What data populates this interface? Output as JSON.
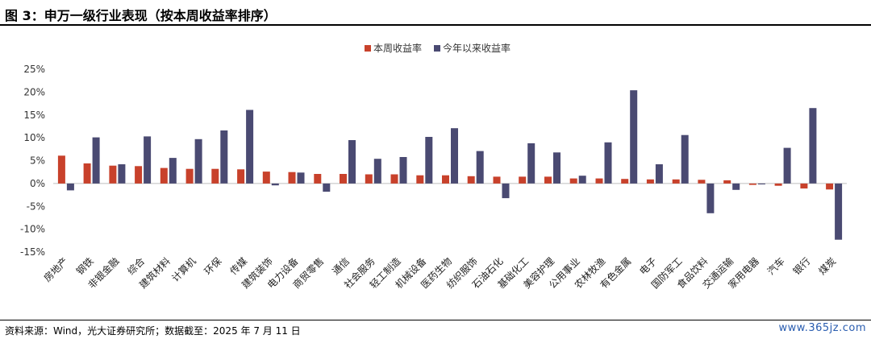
{
  "header": {
    "title": "图 3：申万一级行业表现（按本周收益率排序）"
  },
  "footer": {
    "source": "资料来源：Wind，光大证券研究所；数据截至：2025 年 7 月 11 日",
    "watermark": "www.365jz.com"
  },
  "colors": {
    "weekly": "#c8412b",
    "ytd": "#4a4a72"
  },
  "chart_data": {
    "type": "bar",
    "categories": [
      "房地产",
      "钢铁",
      "非银金融",
      "综合",
      "建筑材料",
      "计算机",
      "环保",
      "传媒",
      "建筑装饰",
      "电力设备",
      "商贸零售",
      "通信",
      "社会服务",
      "轻工制造",
      "机械设备",
      "医药生物",
      "纺织服饰",
      "石油石化",
      "基础化工",
      "美容护理",
      "公用事业",
      "农林牧渔",
      "有色金属",
      "电子",
      "国防军工",
      "食品饮料",
      "交通运输",
      "家用电器",
      "汽车",
      "银行",
      "煤炭"
    ],
    "series": [
      {
        "name": "本周收益率",
        "values": [
          6.1,
          4.4,
          3.9,
          3.8,
          3.4,
          3.2,
          3.2,
          3.1,
          2.6,
          2.5,
          2.1,
          2.1,
          2.0,
          2.0,
          1.8,
          1.8,
          1.6,
          1.5,
          1.5,
          1.5,
          1.1,
          1.1,
          1.0,
          0.9,
          0.9,
          0.8,
          0.7,
          -0.3,
          -0.5,
          -1.1,
          -1.3
        ]
      },
      {
        "name": "今年以来收益率",
        "values": [
          -1.5,
          10.1,
          4.2,
          10.3,
          5.6,
          9.7,
          11.6,
          16.1,
          -0.4,
          2.4,
          -1.8,
          9.5,
          5.4,
          5.8,
          10.2,
          12.1,
          7.1,
          -3.2,
          8.8,
          6.8,
          1.7,
          9.0,
          20.4,
          4.2,
          10.6,
          -6.5,
          -1.4,
          -0.2,
          7.8,
          16.5,
          -12.3
        ]
      }
    ],
    "ylim": [
      -15,
      25
    ],
    "yticks": [
      "-15%",
      "-10%",
      "-5%",
      "0%",
      "5%",
      "10%",
      "15%",
      "20%",
      "25%"
    ],
    "legend": "top-center",
    "grid": false
  }
}
